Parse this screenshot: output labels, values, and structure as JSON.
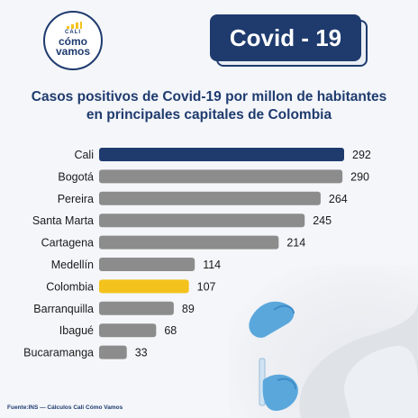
{
  "logo": {
    "city": "CALI",
    "line1": "cómo",
    "line2": "vamos"
  },
  "badge": {
    "text": "Covid - 19"
  },
  "title": {
    "line1": "Casos positivos de Covid-19 por millon de habitantes",
    "line2": "en principales capitales de Colombia"
  },
  "source": "Fuente:INS — Cálculos Cali Cómo Vamos",
  "colors": {
    "highlight": "#1f3b6e",
    "national": "#f4c21c",
    "default": "#8c8c8c",
    "text": "#1f3b6e"
  },
  "chart_data": {
    "type": "bar",
    "orientation": "horizontal",
    "categories": [
      "Cali",
      "Bogotá",
      "Pereira",
      "Santa Marta",
      "Cartagena",
      "Medellín",
      "Colombia",
      "Barranquilla",
      "Ibagué",
      "Bucaramanga"
    ],
    "values": [
      292,
      290,
      264,
      245,
      214,
      114,
      107,
      89,
      68,
      33
    ],
    "highlight": {
      "Cali": "#1f3b6e",
      "Colombia": "#f4c21c"
    },
    "data_labels": true,
    "xlim": [
      0,
      292
    ],
    "grid": false,
    "legend": "none"
  }
}
